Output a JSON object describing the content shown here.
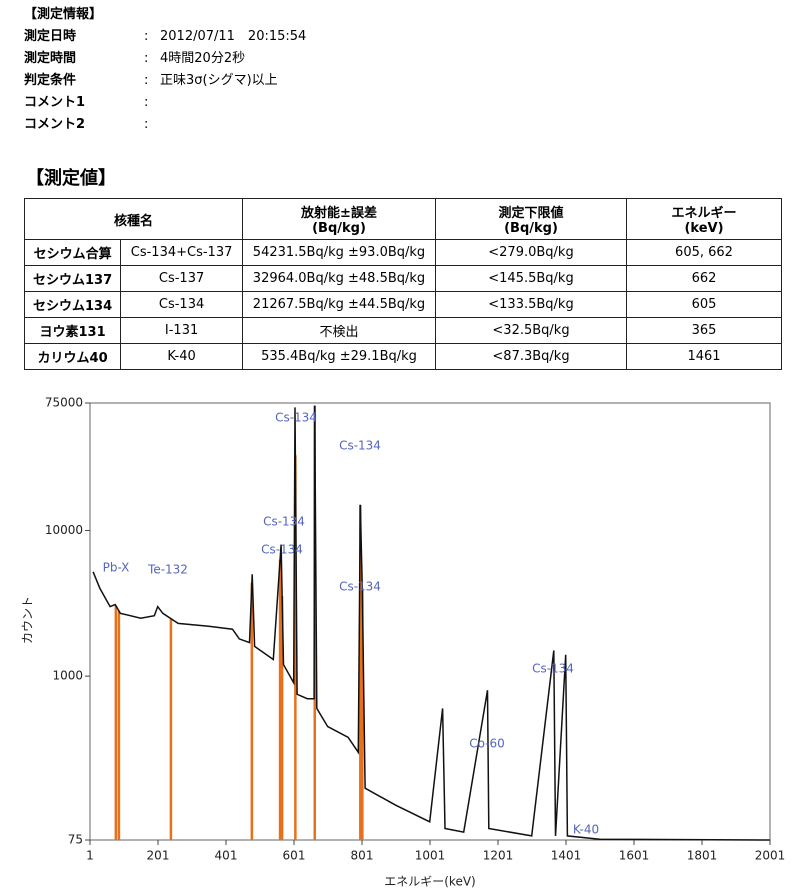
{
  "info": {
    "heading": "【測定情報】",
    "rows": [
      {
        "label": "測定日時",
        "sep": ":",
        "value": "2012/07/11　20:15:54"
      },
      {
        "label": "測定時間",
        "sep": ":",
        "value": "4時間20分2秒"
      },
      {
        "label": "判定条件",
        "sep": ":",
        "value": "正味3σ(シグマ)以上"
      },
      {
        "label": "コメント1",
        "sep": ":"
      },
      {
        "label": "コメント2",
        "sep": ":"
      }
    ]
  },
  "table": {
    "title": "【測定値】",
    "header": [
      [
        "核種名"
      ],
      [
        "放射能±誤差",
        "(Bq/kg)"
      ],
      [
        "測定下限値",
        "(Bq/kg)"
      ],
      [
        "エネルギー",
        "(keV)"
      ]
    ],
    "rows": [
      [
        "セシウム合算",
        "Cs-134+Cs-137",
        "54231.5Bq/kg ±93.0Bq/kg",
        "<279.0Bq/kg",
        "605, 662"
      ],
      [
        "セシウム137",
        "Cs-137",
        "32964.0Bq/kg ±48.5Bq/kg",
        "<145.5Bq/kg",
        "662"
      ],
      [
        "セシウム134",
        "Cs-134",
        "21267.5Bq/kg ±44.5Bq/kg",
        "<133.5Bq/kg",
        "605"
      ],
      [
        "ヨウ素131",
        "I-131",
        "不検出",
        "<32.5Bq/kg",
        "365"
      ],
      [
        "カリウム40",
        "K-40",
        "535.4Bq/kg ±29.1Bq/kg",
        "<87.3Bq/kg",
        "1461"
      ]
    ]
  },
  "chart_data": {
    "type": "line",
    "x_label": "エネルギー(keV)",
    "y_label": "カウント",
    "log_y": true,
    "xlim": [
      1,
      2001
    ],
    "xticks": [
      1,
      201,
      401,
      601,
      801,
      1001,
      1201,
      1401,
      1601,
      1801,
      2001
    ],
    "ylim": [
      75,
      75000
    ],
    "yticks": [
      75,
      1000,
      10000,
      75000
    ],
    "series": [
      {
        "color": "#111111",
        "x": [
          10,
          30,
          60,
          75,
          90,
          150,
          190,
          200,
          215,
          260,
          350,
          420,
          440,
          470,
          478,
          485,
          540,
          563,
          570,
          600,
          604,
          610,
          640,
          660,
          662,
          668,
          700,
          760,
          790,
          796,
          802,
          810,
          900,
          1000,
          1038,
          1045,
          1100,
          1170,
          1174,
          1300,
          1365,
          1370,
          1400,
          1405,
          1500,
          2000
        ],
        "values": [
          5200,
          4000,
          3000,
          3100,
          2700,
          2500,
          2600,
          3000,
          2700,
          2300,
          2200,
          2100,
          1800,
          1700,
          5000,
          1600,
          1300,
          8000,
          1200,
          900,
          70000,
          750,
          700,
          700,
          72000,
          600,
          450,
          380,
          300,
          15000,
          4000,
          170,
          130,
          100,
          600,
          90,
          85,
          800,
          90,
          80,
          1500,
          80,
          1400,
          80,
          76,
          75
        ]
      }
    ],
    "markers": {
      "color": "#e8701a",
      "x": [
        77,
        86,
        239,
        477,
        560,
        566,
        605,
        662,
        796,
        802
      ]
    },
    "annotations": [
      {
        "text": "Cs-134",
        "color": "#5566bb"
      },
      {
        "text": "Cs-134",
        "color": "#5566bb"
      },
      {
        "text": "Cs-134",
        "color": "#5566bb"
      },
      {
        "text": "Cs-134",
        "color": "#5566bb"
      },
      {
        "text": "Pb-X",
        "color": "#5566bb"
      },
      {
        "text": "Te-132",
        "color": "#5566bb"
      },
      {
        "text": "Cs-134",
        "color": "#5566bb"
      },
      {
        "text": "Cs-134",
        "color": "#5566bb"
      },
      {
        "text": "Co-60",
        "color": "#5566bb"
      },
      {
        "text": "K-40",
        "color": "#5566bb"
      }
    ]
  }
}
